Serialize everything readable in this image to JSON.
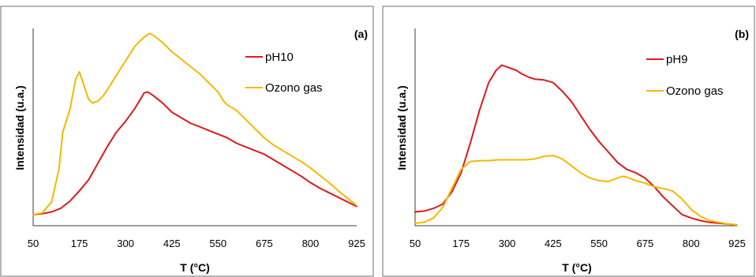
{
  "chart_data": [
    {
      "type": "line",
      "panel_label": "(a)",
      "xlabel": "T (°C)",
      "ylabel": "Intensidad (u.a.)",
      "xlim": [
        50,
        925
      ],
      "xticks": [
        "50",
        "175",
        "300",
        "425",
        "550",
        "675",
        "800",
        "925"
      ],
      "ylim": [
        0,
        100
      ],
      "y_tick_labels": false,
      "grid": false,
      "legend": "right",
      "series": [
        {
          "name": "pH10",
          "color": "#e0191b",
          "x": [
            50,
            75,
            100,
            125,
            150,
            175,
            200,
            225,
            250,
            275,
            300,
            325,
            340,
            350,
            360,
            375,
            400,
            425,
            450,
            475,
            500,
            525,
            550,
            575,
            600,
            625,
            650,
            675,
            700,
            725,
            750,
            775,
            800,
            825,
            850,
            875,
            900,
            925
          ],
          "y": [
            0,
            0.5,
            1.5,
            3.5,
            7.5,
            13,
            19,
            28,
            37,
            45,
            51,
            58,
            63,
            66.5,
            67,
            65,
            61,
            56,
            53,
            50,
            48,
            46,
            44,
            42,
            39,
            37,
            35,
            33,
            30,
            27,
            24,
            21,
            17.5,
            14.5,
            12,
            9.5,
            7,
            4.5
          ]
        },
        {
          "name": "Ozono gas",
          "color": "#f5b800",
          "x": [
            50,
            75,
            100,
            120,
            130,
            150,
            165,
            175,
            185,
            200,
            210,
            225,
            240,
            250,
            275,
            300,
            325,
            350,
            365,
            375,
            400,
            425,
            450,
            475,
            500,
            525,
            550,
            565,
            575,
            600,
            625,
            650,
            675,
            700,
            725,
            750,
            775,
            800,
            825,
            850,
            875,
            900,
            925
          ],
          "y": [
            0,
            1,
            7,
            25,
            45,
            58,
            74,
            78,
            72,
            63,
            61,
            62,
            65,
            68,
            76,
            84,
            92,
            97,
            99,
            98,
            94,
            89,
            85,
            81,
            77,
            72,
            67,
            62,
            60,
            57,
            52,
            47,
            42,
            38,
            35,
            32,
            29,
            25.5,
            21.5,
            17.5,
            13,
            9,
            5
          ]
        }
      ]
    },
    {
      "type": "line",
      "panel_label": "(b)",
      "xlabel": "T (°C)",
      "ylabel": "Intensidad (u.a.)",
      "xlim": [
        50,
        925
      ],
      "xticks": [
        "50",
        "175",
        "300",
        "425",
        "550",
        "675",
        "800",
        "925"
      ],
      "ylim": [
        0,
        100
      ],
      "y_tick_labels": false,
      "grid": false,
      "legend": "right",
      "series": [
        {
          "name": "pH9",
          "color": "#e0191b",
          "x": [
            50,
            75,
            100,
            125,
            150,
            175,
            200,
            225,
            250,
            270,
            285,
            300,
            325,
            340,
            360,
            375,
            400,
            425,
            450,
            475,
            500,
            525,
            550,
            575,
            600,
            625,
            650,
            675,
            700,
            725,
            750,
            775,
            800,
            825,
            850,
            875,
            900,
            925
          ],
          "y": [
            7.5,
            8,
            9.5,
            12,
            19,
            30,
            47,
            66,
            82,
            89,
            92,
            91,
            89,
            87,
            85,
            84,
            83.5,
            82,
            77,
            71,
            63,
            55,
            48,
            42,
            36,
            32,
            30,
            27,
            22,
            16,
            11,
            6,
            4,
            2.5,
            1.5,
            1,
            0.5,
            0
          ]
        },
        {
          "name": "Ozono gas",
          "color": "#f5b800",
          "x": [
            50,
            75,
            100,
            125,
            150,
            175,
            200,
            225,
            250,
            275,
            300,
            325,
            350,
            375,
            400,
            425,
            450,
            475,
            500,
            525,
            550,
            575,
            600,
            615,
            625,
            650,
            675,
            700,
            725,
            750,
            775,
            800,
            825,
            850,
            875,
            900,
            925
          ],
          "y": [
            1,
            1.5,
            4,
            10,
            21,
            32,
            36.5,
            37,
            37,
            37.5,
            37.5,
            37.5,
            37.5,
            38,
            39.5,
            40,
            38,
            34,
            30,
            27,
            25.5,
            25,
            27,
            28,
            27.5,
            25.5,
            24,
            22,
            21,
            19.5,
            15,
            9,
            5,
            2.5,
            1.5,
            0.5,
            0
          ]
        }
      ]
    }
  ]
}
